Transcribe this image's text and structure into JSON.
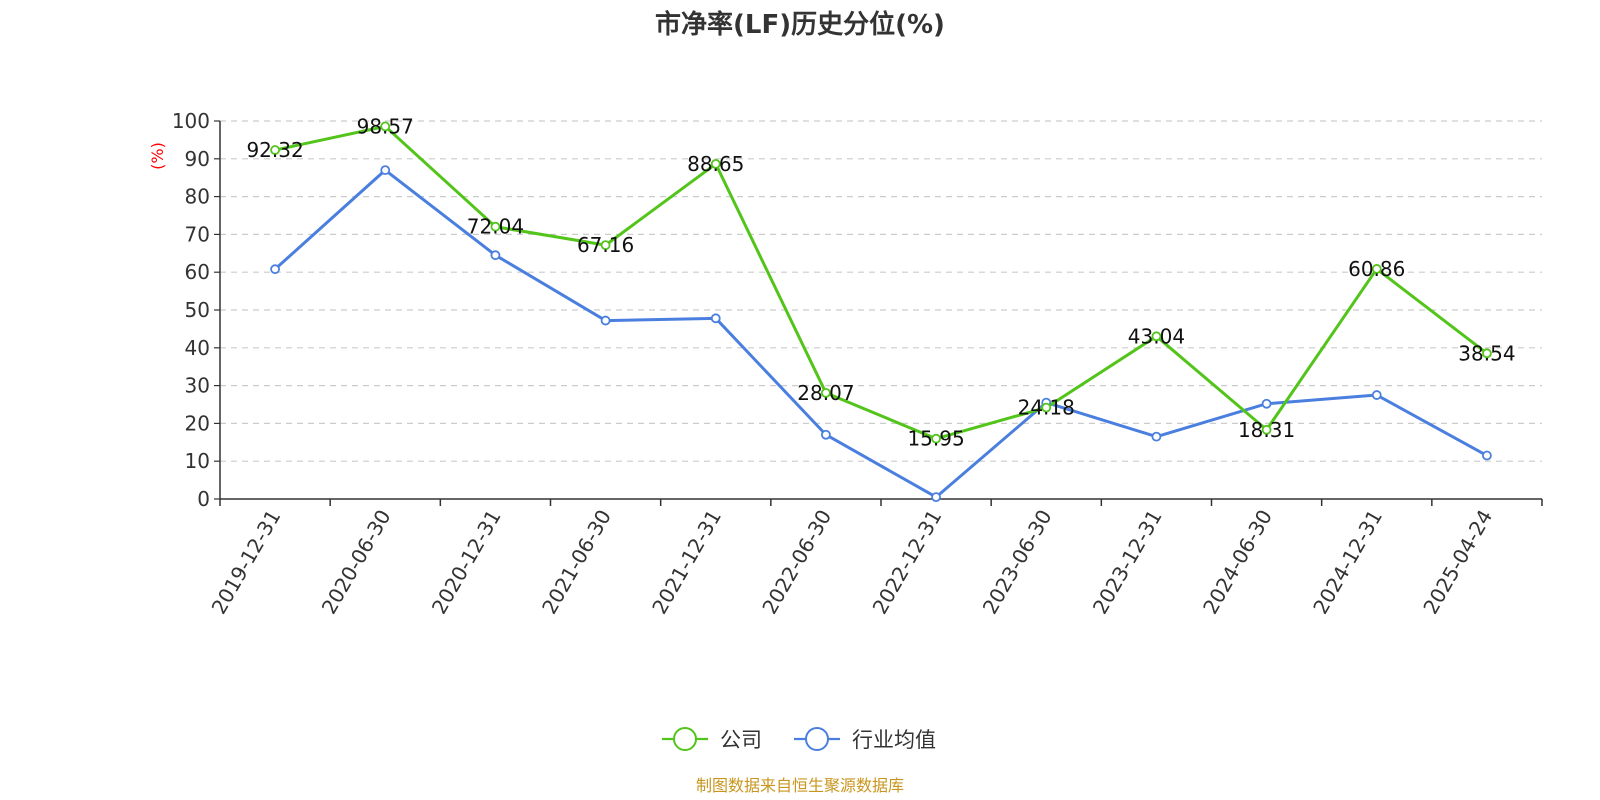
{
  "chart_data": {
    "type": "line",
    "title": "市净率(LF)历史分位(%)",
    "xlabel": "",
    "ylabel": "(%)",
    "categories": [
      "2019-12-31",
      "2020-06-30",
      "2020-12-31",
      "2021-06-30",
      "2021-12-31",
      "2022-06-30",
      "2022-12-31",
      "2023-06-30",
      "2023-12-31",
      "2024-06-30",
      "2024-12-31",
      "2025-04-24"
    ],
    "ylim": [
      0,
      100
    ],
    "yticks": [
      0,
      10,
      20,
      30,
      40,
      50,
      60,
      70,
      80,
      90,
      100
    ],
    "grid": true,
    "legend_position": "bottom-center",
    "series": [
      {
        "name": "公司",
        "color": "#52c41a",
        "values": [
          92.32,
          98.57,
          72.04,
          67.16,
          88.65,
          28.07,
          15.95,
          24.18,
          43.04,
          18.31,
          60.86,
          38.54
        ],
        "labels": [
          "92.32",
          "98.57",
          "72.04",
          "67.16",
          "88.65",
          "28.07",
          "15.95",
          "24.18",
          "43.04",
          "18.31",
          "60.86",
          "38.54"
        ]
      },
      {
        "name": "行业均值",
        "color": "#4a7fe0",
        "values": [
          60.8,
          87.0,
          64.5,
          47.2,
          47.8,
          17.0,
          0.5,
          25.5,
          16.5,
          25.2,
          27.5,
          11.5
        ]
      }
    ],
    "ylabel_color": "#ff0000",
    "source": "制图数据来自恒生聚源数据库",
    "source_color": "#c8961e"
  }
}
